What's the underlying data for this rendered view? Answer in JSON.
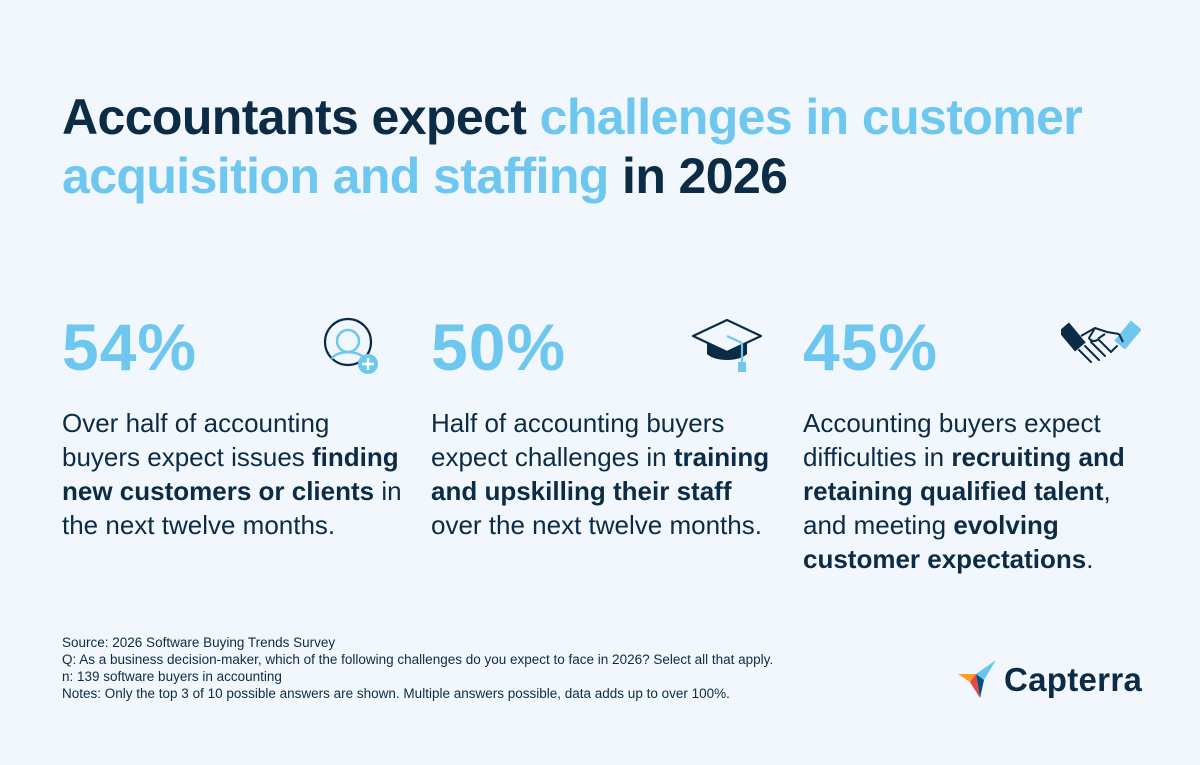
{
  "title": {
    "part1": "Accountants expect ",
    "highlight": "challenges in customer acquisition and staffing",
    "part2": " in 2026"
  },
  "colors": {
    "background": "#f1f7fc",
    "navy": "#0c2b45",
    "accent": "#6ec7ee"
  },
  "stats": [
    {
      "value": "54%",
      "icon": "user-add-icon",
      "t1": "Over half of accounting buyers expect issues ",
      "b1": "finding new customers or clients",
      "t2": " in the next twelve months."
    },
    {
      "value": "50%",
      "icon": "graduation-cap-icon",
      "t1": "Half of accounting buyers expect challenges in ",
      "b1": "training and upskilling their staff",
      "t2": " over the next twelve months."
    },
    {
      "value": "45%",
      "icon": "handshake-icon",
      "t1": "Accounting buyers expect difficulties in ",
      "b1": "recruiting and retaining qualified talent",
      "t2": ", and meeting ",
      "b2": "evolving customer expectations",
      "t3": "."
    }
  ],
  "footer": {
    "source": "Source: 2026 Software Buying Trends Survey",
    "question": "Q: As a business decision-maker, which of the following challenges do you expect to face in 2026? Select all that apply.",
    "n": "n: 139 software buyers in accounting",
    "notes": "Notes: Only the top 3 of 10 possible answers are shown. Multiple answers possible, data adds up to over 100%."
  },
  "brand": {
    "name": "Capterra",
    "icon": "capterra-logo-icon"
  }
}
